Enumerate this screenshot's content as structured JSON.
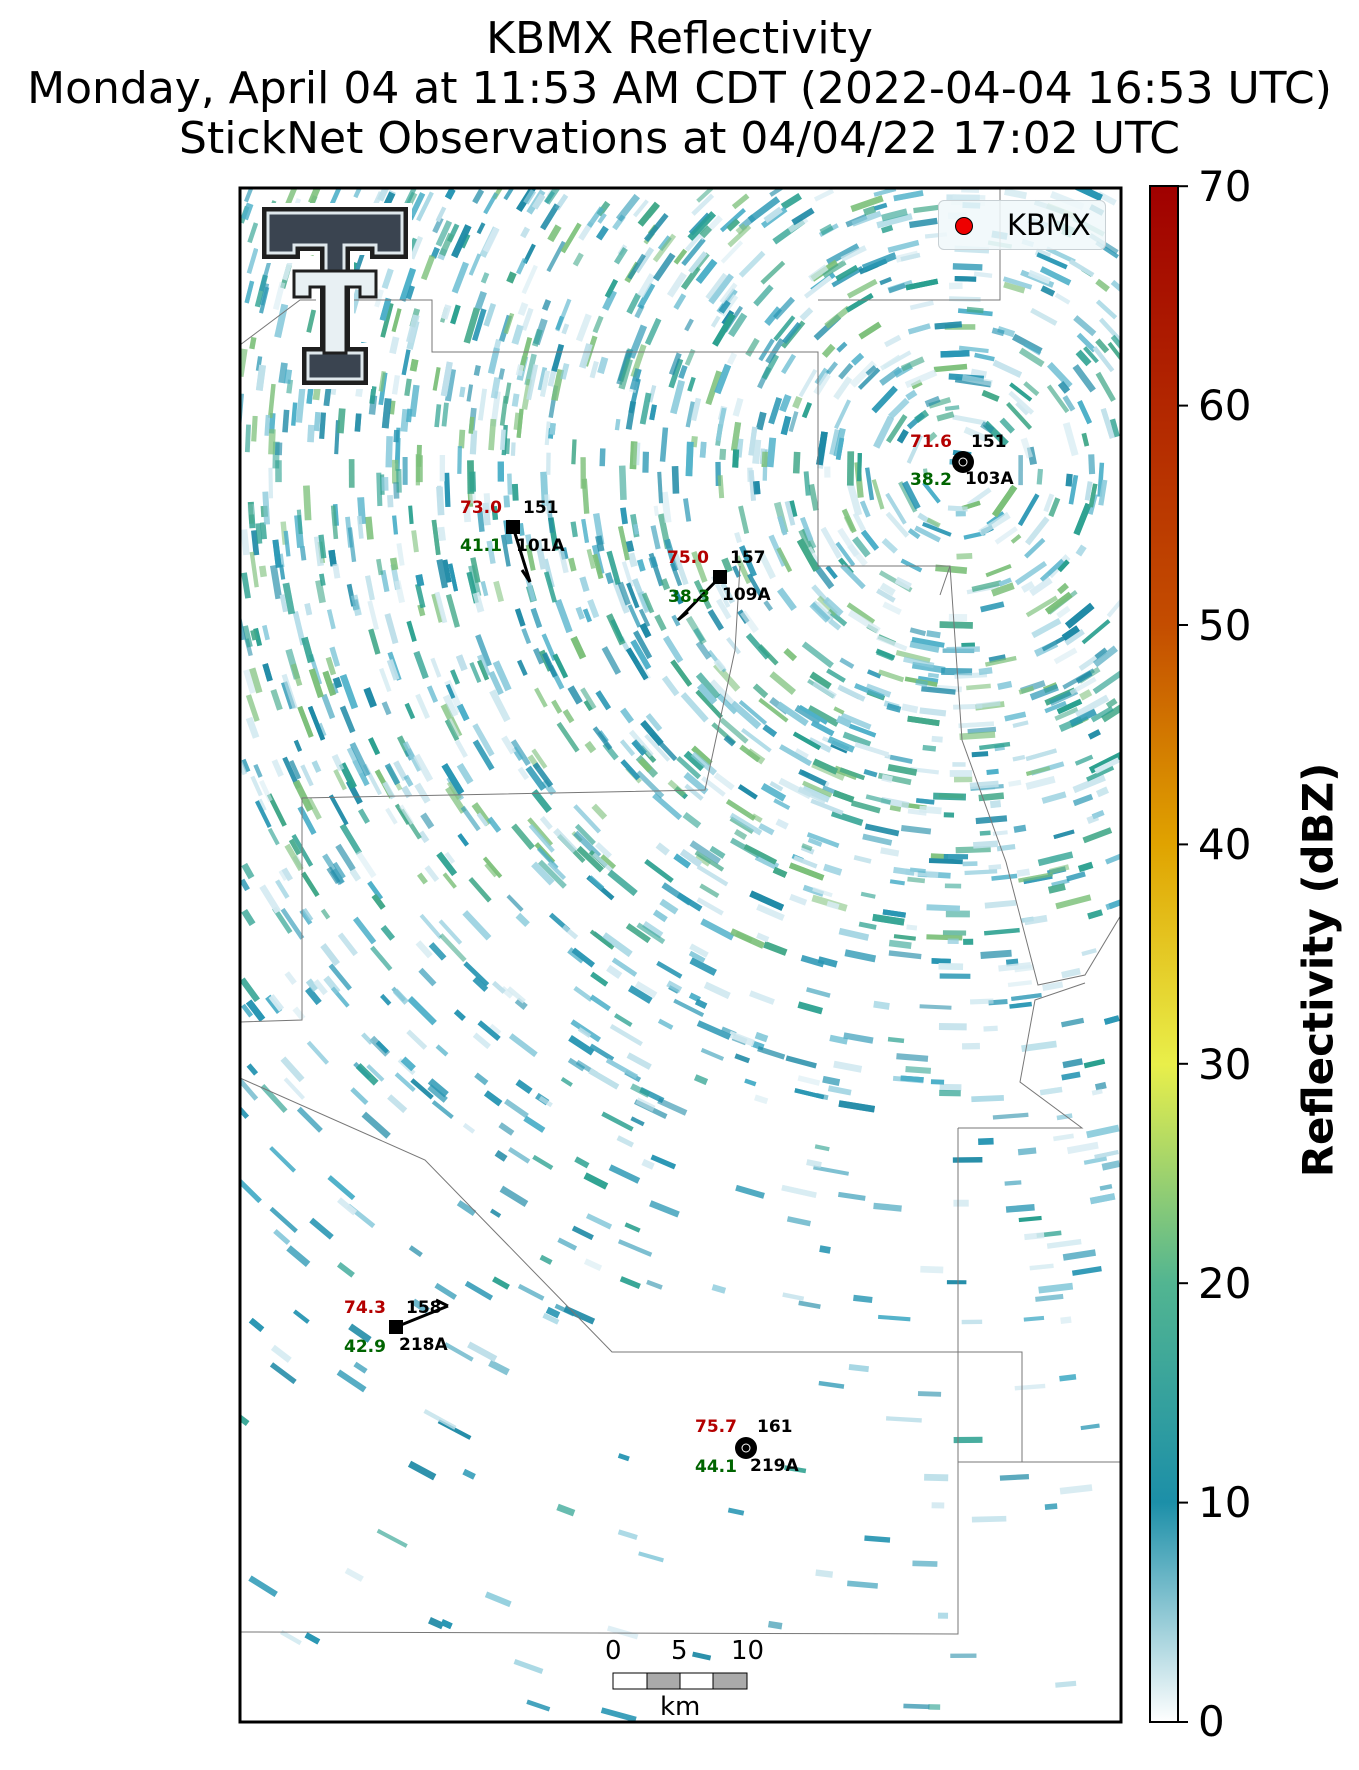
{
  "title": {
    "line1": "KBMX Reflectivity",
    "line2": "Monday, April 04 at 11:53 AM CDT (2022-04-04 16:53 UTC)",
    "line3": "StickNet Observations at 04/04/22 17:02 UTC"
  },
  "legend": {
    "label": "KBMX",
    "marker_color": "#ee0000"
  },
  "colorbar": {
    "label": "Reflectivity (dBZ)",
    "ticks": [
      "70",
      "60",
      "50",
      "40",
      "30",
      "20",
      "10",
      "0"
    ],
    "range": [
      0,
      70
    ],
    "colors": [
      "#ffffff",
      "#1c8fa8",
      "#52b591",
      "#e9ef4a",
      "#e0a300",
      "#c44d00",
      "#a00000"
    ]
  },
  "stations": [
    {
      "id": "101A",
      "temp": "73.0",
      "dew": "41.1",
      "pressure": "151"
    },
    {
      "id": "109A",
      "temp": "75.0",
      "dew": "38.3",
      "pressure": "157"
    },
    {
      "id": "103A",
      "temp": "71.6",
      "dew": "38.2",
      "pressure": "151"
    },
    {
      "id": "218A",
      "temp": "74.3",
      "dew": "42.9",
      "pressure": "158"
    },
    {
      "id": "219A",
      "temp": "75.7",
      "dew": "44.1",
      "pressure": "161"
    }
  ],
  "scalebar": {
    "ticks": [
      "0",
      "5",
      "10"
    ],
    "unit": "km"
  }
}
